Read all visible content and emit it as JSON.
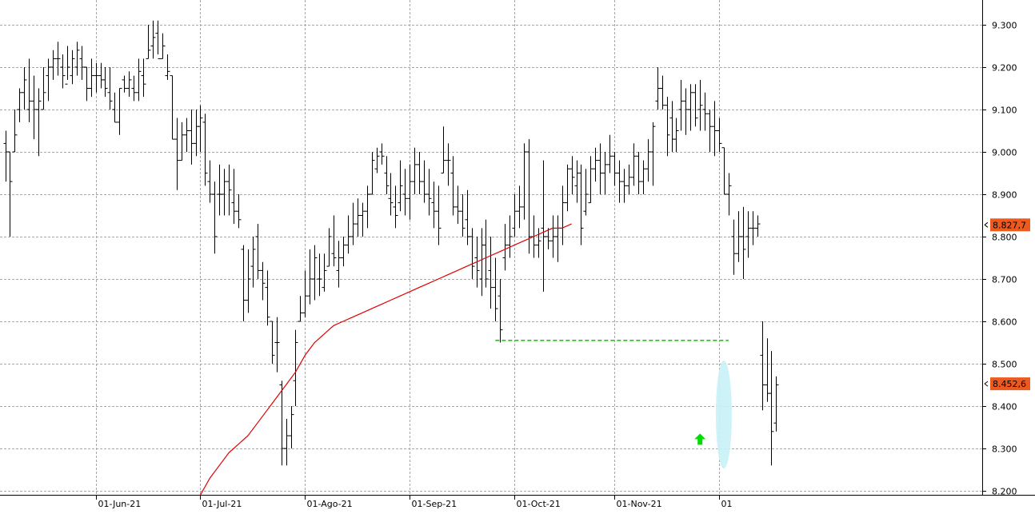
{
  "chart_data": {
    "type": "ohlc",
    "y_ticks": [
      8.2,
      8.3,
      8.4,
      8.5,
      8.6,
      8.7,
      8.8,
      8.9,
      9.0,
      9.1,
      9.2,
      9.3
    ],
    "y_tick_labels": [
      "8.200",
      "8.300",
      "8.400",
      "8.500",
      "8.600",
      "8.700",
      "8.800",
      "8.900",
      "9.000",
      "9.100",
      "9.200",
      "9.300"
    ],
    "ylim": [
      8.18,
      9.38
    ],
    "x_ticks": [
      {
        "label": "01-Jun-21",
        "index": 19
      },
      {
        "label": "01-Jul-21",
        "index": 41
      },
      {
        "label": "01-Ago-21",
        "index": 63
      },
      {
        "label": "01-Sep-21",
        "index": 85
      },
      {
        "label": "01-Oct-21",
        "index": 107
      },
      {
        "label": "01-Nov-21",
        "index": 128
      },
      {
        "label": "01",
        "index": 150
      }
    ],
    "bars": [
      {
        "o": 9.02,
        "h": 9.05,
        "l": 8.93,
        "c": 9.0
      },
      {
        "o": 9.0,
        "h": 9.0,
        "l": 8.8,
        "c": 8.93
      },
      {
        "o": 9.0,
        "h": 9.1,
        "l": 9.0,
        "c": 9.04
      },
      {
        "o": 9.1,
        "h": 9.15,
        "l": 9.07,
        "c": 9.14
      },
      {
        "o": 9.14,
        "h": 9.2,
        "l": 9.1,
        "c": 9.17
      },
      {
        "o": 9.1,
        "h": 9.22,
        "l": 9.07,
        "c": 9.12
      },
      {
        "o": 9.12,
        "h": 9.18,
        "l": 9.03,
        "c": 9.1
      },
      {
        "o": 9.1,
        "h": 9.15,
        "l": 8.99,
        "c": 9.12
      },
      {
        "o": 9.1,
        "h": 9.2,
        "l": 9.1,
        "c": 9.14
      },
      {
        "o": 9.18,
        "h": 9.22,
        "l": 9.12,
        "c": 9.2
      },
      {
        "o": 9.2,
        "h": 9.24,
        "l": 9.17,
        "c": 9.22
      },
      {
        "o": 9.22,
        "h": 9.26,
        "l": 9.18,
        "c": 9.22
      },
      {
        "o": 9.2,
        "h": 9.23,
        "l": 9.15,
        "c": 9.18
      },
      {
        "o": 9.16,
        "h": 9.25,
        "l": 9.17,
        "c": 9.2
      },
      {
        "o": 9.18,
        "h": 9.24,
        "l": 9.16,
        "c": 9.22
      },
      {
        "o": 9.2,
        "h": 9.26,
        "l": 9.18,
        "c": 9.24
      },
      {
        "o": 9.22,
        "h": 9.25,
        "l": 9.17,
        "c": 9.2
      },
      {
        "o": 9.2,
        "h": 9.2,
        "l": 9.12,
        "c": 9.15
      },
      {
        "o": 9.15,
        "h": 9.22,
        "l": 9.13,
        "c": 9.18
      },
      {
        "o": 9.18,
        "h": 9.21,
        "l": 9.14,
        "c": 9.18
      },
      {
        "o": 9.18,
        "h": 9.21,
        "l": 9.15,
        "c": 9.17
      },
      {
        "o": 9.17,
        "h": 9.2,
        "l": 9.13,
        "c": 9.15
      },
      {
        "o": 9.14,
        "h": 9.2,
        "l": 9.1,
        "c": 9.12
      },
      {
        "o": 9.1,
        "h": 9.14,
        "l": 9.07,
        "c": 9.07
      },
      {
        "o": 9.07,
        "h": 9.15,
        "l": 9.04,
        "c": 9.15
      },
      {
        "o": 9.17,
        "h": 9.18,
        "l": 9.14,
        "c": 9.15
      },
      {
        "o": 9.15,
        "h": 9.19,
        "l": 9.13,
        "c": 9.17
      },
      {
        "o": 9.15,
        "h": 9.18,
        "l": 9.12,
        "c": 9.14
      },
      {
        "o": 9.14,
        "h": 9.22,
        "l": 9.12,
        "c": 9.19
      },
      {
        "o": 9.18,
        "h": 9.22,
        "l": 9.13,
        "c": 9.16
      },
      {
        "o": 9.22,
        "h": 9.3,
        "l": 9.22,
        "c": 9.24
      },
      {
        "o": 9.25,
        "h": 9.31,
        "l": 9.22,
        "c": 9.27
      },
      {
        "o": 9.28,
        "h": 9.31,
        "l": 9.23,
        "c": 9.22
      },
      {
        "o": 9.22,
        "h": 9.28,
        "l": 9.22,
        "c": 9.25
      },
      {
        "o": 9.18,
        "h": 9.23,
        "l": 9.17,
        "c": 9.19
      },
      {
        "o": 9.18,
        "h": 9.18,
        "l": 9.03,
        "c": 9.03
      },
      {
        "o": 9.03,
        "h": 9.08,
        "l": 8.91,
        "c": 8.98
      },
      {
        "o": 8.98,
        "h": 9.07,
        "l": 8.98,
        "c": 9.04
      },
      {
        "o": 9.04,
        "h": 9.08,
        "l": 9.0,
        "c": 9.05
      },
      {
        "o": 9.05,
        "h": 9.1,
        "l": 8.97,
        "c": 9.02
      },
      {
        "o": 9.02,
        "h": 9.1,
        "l": 8.99,
        "c": 9.06
      },
      {
        "o": 9.06,
        "h": 9.11,
        "l": 9.0,
        "c": 9.08
      },
      {
        "o": 9.07,
        "h": 9.09,
        "l": 8.92,
        "c": 8.95
      },
      {
        "o": 8.93,
        "h": 8.98,
        "l": 8.88,
        "c": 8.9
      },
      {
        "o": 8.9,
        "h": 8.93,
        "l": 8.76,
        "c": 8.8
      },
      {
        "o": 8.9,
        "h": 8.97,
        "l": 8.85,
        "c": 8.9
      },
      {
        "o": 8.9,
        "h": 8.96,
        "l": 8.85,
        "c": 8.93
      },
      {
        "o": 8.93,
        "h": 8.97,
        "l": 8.85,
        "c": 8.91
      },
      {
        "o": 8.88,
        "h": 8.96,
        "l": 8.83,
        "c": 8.86
      },
      {
        "o": 8.86,
        "h": 8.9,
        "l": 8.82,
        "c": 8.84
      },
      {
        "o": 8.77,
        "h": 8.78,
        "l": 8.6,
        "c": 8.65
      },
      {
        "o": 8.65,
        "h": 8.77,
        "l": 8.62,
        "c": 8.7
      },
      {
        "o": 8.73,
        "h": 8.8,
        "l": 8.68,
        "c": 8.77
      },
      {
        "o": 8.8,
        "h": 8.83,
        "l": 8.7,
        "c": 8.72
      },
      {
        "o": 8.72,
        "h": 8.74,
        "l": 8.65,
        "c": 8.69
      },
      {
        "o": 8.68,
        "h": 8.72,
        "l": 8.59,
        "c": 8.61
      },
      {
        "o": 8.6,
        "h": 8.6,
        "l": 8.5,
        "c": 8.52
      },
      {
        "o": 8.55,
        "h": 8.61,
        "l": 8.48,
        "c": 8.55
      },
      {
        "o": 8.45,
        "h": 8.46,
        "l": 8.26,
        "c": 8.3
      },
      {
        "o": 8.3,
        "h": 8.37,
        "l": 8.26,
        "c": 8.33
      },
      {
        "o": 8.33,
        "h": 8.4,
        "l": 8.3,
        "c": 8.38
      },
      {
        "o": 8.46,
        "h": 8.58,
        "l": 8.4,
        "c": 8.55
      },
      {
        "o": 8.6,
        "h": 8.66,
        "l": 8.6,
        "c": 8.62
      },
      {
        "o": 8.62,
        "h": 8.72,
        "l": 8.61,
        "c": 8.66
      },
      {
        "o": 8.66,
        "h": 8.77,
        "l": 8.64,
        "c": 8.7
      },
      {
        "o": 8.7,
        "h": 8.78,
        "l": 8.65,
        "c": 8.75
      },
      {
        "o": 8.7,
        "h": 8.76,
        "l": 8.66,
        "c": 8.7
      },
      {
        "o": 8.68,
        "h": 8.76,
        "l": 8.67,
        "c": 8.72
      },
      {
        "o": 8.73,
        "h": 8.82,
        "l": 8.73,
        "c": 8.8
      },
      {
        "o": 8.76,
        "h": 8.85,
        "l": 8.73,
        "c": 8.75
      },
      {
        "o": 8.72,
        "h": 8.79,
        "l": 8.68,
        "c": 8.75
      },
      {
        "o": 8.75,
        "h": 8.8,
        "l": 8.73,
        "c": 8.78
      },
      {
        "o": 8.78,
        "h": 8.85,
        "l": 8.76,
        "c": 8.8
      },
      {
        "o": 8.8,
        "h": 8.88,
        "l": 8.78,
        "c": 8.83
      },
      {
        "o": 8.83,
        "h": 8.89,
        "l": 8.8,
        "c": 8.85
      },
      {
        "o": 8.85,
        "h": 8.88,
        "l": 8.8,
        "c": 8.86
      },
      {
        "o": 8.86,
        "h": 8.92,
        "l": 8.82,
        "c": 8.9
      },
      {
        "o": 8.9,
        "h": 9.0,
        "l": 8.9,
        "c": 8.98
      },
      {
        "o": 8.96,
        "h": 9.01,
        "l": 8.95,
        "c": 8.99
      },
      {
        "o": 9.0,
        "h": 9.02,
        "l": 8.97,
        "c": 8.99
      },
      {
        "o": 8.95,
        "h": 8.99,
        "l": 8.9,
        "c": 8.92
      },
      {
        "o": 8.89,
        "h": 8.95,
        "l": 8.85,
        "c": 8.88
      },
      {
        "o": 8.87,
        "h": 8.92,
        "l": 8.82,
        "c": 8.85
      },
      {
        "o": 8.88,
        "h": 8.98,
        "l": 8.86,
        "c": 8.92
      },
      {
        "o": 8.9,
        "h": 8.96,
        "l": 8.85,
        "c": 8.89
      },
      {
        "o": 8.89,
        "h": 8.97,
        "l": 8.84,
        "c": 8.93
      },
      {
        "o": 8.93,
        "h": 9.01,
        "l": 8.9,
        "c": 8.97
      },
      {
        "o": 8.97,
        "h": 9.0,
        "l": 8.9,
        "c": 8.93
      },
      {
        "o": 8.93,
        "h": 8.98,
        "l": 8.88,
        "c": 8.9
      },
      {
        "o": 8.9,
        "h": 8.96,
        "l": 8.85,
        "c": 8.89
      },
      {
        "o": 8.88,
        "h": 8.93,
        "l": 8.82,
        "c": 8.86
      },
      {
        "o": 8.86,
        "h": 8.92,
        "l": 8.78,
        "c": 8.82
      },
      {
        "o": 8.95,
        "h": 9.06,
        "l": 8.95,
        "c": 8.98
      },
      {
        "o": 8.98,
        "h": 9.02,
        "l": 8.92,
        "c": 8.98
      },
      {
        "o": 8.95,
        "h": 8.99,
        "l": 8.85,
        "c": 8.87
      },
      {
        "o": 8.87,
        "h": 8.92,
        "l": 8.83,
        "c": 8.86
      },
      {
        "o": 8.86,
        "h": 8.9,
        "l": 8.8,
        "c": 8.82
      },
      {
        "o": 8.84,
        "h": 8.91,
        "l": 8.78,
        "c": 8.8
      },
      {
        "o": 8.8,
        "h": 8.82,
        "l": 8.7,
        "c": 8.73
      },
      {
        "o": 8.75,
        "h": 8.8,
        "l": 8.68,
        "c": 8.72
      },
      {
        "o": 8.7,
        "h": 8.82,
        "l": 8.66,
        "c": 8.78
      },
      {
        "o": 8.78,
        "h": 8.84,
        "l": 8.68,
        "c": 8.7
      },
      {
        "o": 8.72,
        "h": 8.8,
        "l": 8.63,
        "c": 8.68
      },
      {
        "o": 8.68,
        "h": 8.75,
        "l": 8.6,
        "c": 8.63
      },
      {
        "o": 8.66,
        "h": 8.7,
        "l": 8.55,
        "c": 8.58
      },
      {
        "o": 8.75,
        "h": 8.83,
        "l": 8.72,
        "c": 8.78
      },
      {
        "o": 8.78,
        "h": 8.85,
        "l": 8.75,
        "c": 8.8
      },
      {
        "o": 8.82,
        "h": 8.9,
        "l": 8.8,
        "c": 8.86
      },
      {
        "o": 8.86,
        "h": 8.92,
        "l": 8.82,
        "c": 8.87
      },
      {
        "o": 8.87,
        "h": 9.02,
        "l": 8.84,
        "c": 9.0
      },
      {
        "o": 9.0,
        "h": 9.03,
        "l": 8.76,
        "c": 8.8
      },
      {
        "o": 8.8,
        "h": 8.85,
        "l": 8.75,
        "c": 8.78
      },
      {
        "o": 8.78,
        "h": 8.82,
        "l": 8.75,
        "c": 8.79
      },
      {
        "o": 8.82,
        "h": 8.98,
        "l": 8.67,
        "c": 8.8
      },
      {
        "o": 8.8,
        "h": 8.82,
        "l": 8.77,
        "c": 8.79
      },
      {
        "o": 8.79,
        "h": 8.85,
        "l": 8.75,
        "c": 8.8
      },
      {
        "o": 8.8,
        "h": 8.85,
        "l": 8.74,
        "c": 8.82
      },
      {
        "o": 8.82,
        "h": 8.92,
        "l": 8.78,
        "c": 8.88
      },
      {
        "o": 8.88,
        "h": 8.97,
        "l": 8.86,
        "c": 8.96
      },
      {
        "o": 8.96,
        "h": 8.99,
        "l": 8.9,
        "c": 8.94
      },
      {
        "o": 8.92,
        "h": 8.98,
        "l": 8.88,
        "c": 8.95
      },
      {
        "o": 8.95,
        "h": 8.97,
        "l": 8.78,
        "c": 8.82
      },
      {
        "o": 8.86,
        "h": 8.96,
        "l": 8.85,
        "c": 8.9
      },
      {
        "o": 8.88,
        "h": 8.99,
        "l": 8.88,
        "c": 8.96
      },
      {
        "o": 8.96,
        "h": 9.01,
        "l": 8.93,
        "c": 8.98
      },
      {
        "o": 8.98,
        "h": 9.02,
        "l": 8.9,
        "c": 8.95
      },
      {
        "o": 8.95,
        "h": 9.0,
        "l": 8.9,
        "c": 8.97
      },
      {
        "o": 8.97,
        "h": 9.04,
        "l": 8.95,
        "c": 8.99
      },
      {
        "o": 8.99,
        "h": 9.0,
        "l": 8.92,
        "c": 8.95
      },
      {
        "o": 8.95,
        "h": 8.98,
        "l": 8.88,
        "c": 8.93
      },
      {
        "o": 8.93,
        "h": 8.96,
        "l": 8.88,
        "c": 8.92
      },
      {
        "o": 8.92,
        "h": 8.97,
        "l": 8.9,
        "c": 8.94
      },
      {
        "o": 8.94,
        "h": 9.02,
        "l": 8.92,
        "c": 8.99
      },
      {
        "o": 8.99,
        "h": 9.0,
        "l": 8.9,
        "c": 8.93
      },
      {
        "o": 8.93,
        "h": 8.98,
        "l": 8.9,
        "c": 8.96
      },
      {
        "o": 8.96,
        "h": 9.03,
        "l": 8.93,
        "c": 9.0
      },
      {
        "o": 9.0,
        "h": 9.07,
        "l": 8.92,
        "c": 9.06
      },
      {
        "o": 9.12,
        "h": 9.2,
        "l": 9.1,
        "c": 9.15
      },
      {
        "o": 9.15,
        "h": 9.18,
        "l": 9.1,
        "c": 9.11
      },
      {
        "o": 9.11,
        "h": 9.13,
        "l": 8.99,
        "c": 9.04
      },
      {
        "o": 9.08,
        "h": 9.12,
        "l": 9.0,
        "c": 9.03
      },
      {
        "o": 9.03,
        "h": 9.08,
        "l": 9.0,
        "c": 9.05
      },
      {
        "o": 9.1,
        "h": 9.17,
        "l": 9.05,
        "c": 9.12
      },
      {
        "o": 9.12,
        "h": 9.15,
        "l": 9.04,
        "c": 9.1
      },
      {
        "o": 9.1,
        "h": 9.16,
        "l": 9.05,
        "c": 9.14
      },
      {
        "o": 9.14,
        "h": 9.16,
        "l": 9.06,
        "c": 9.08
      },
      {
        "o": 9.1,
        "h": 9.17,
        "l": 9.05,
        "c": 9.11
      },
      {
        "o": 9.1,
        "h": 9.14,
        "l": 9.05,
        "c": 9.09
      },
      {
        "o": 9.09,
        "h": 9.1,
        "l": 9.0,
        "c": 9.06
      },
      {
        "o": 9.06,
        "h": 9.12,
        "l": 8.99,
        "c": 9.05
      },
      {
        "o": 9.05,
        "h": 9.08,
        "l": 9.0,
        "c": 9.02
      },
      {
        "o": 9.01,
        "h": 9.01,
        "l": 8.9,
        "c": 8.9
      },
      {
        "o": 8.9,
        "h": 8.95,
        "l": 8.85,
        "c": 8.92
      },
      {
        "o": 8.8,
        "h": 8.84,
        "l": 8.71,
        "c": 8.76
      },
      {
        "o": 8.76,
        "h": 8.86,
        "l": 8.74,
        "c": 8.8
      },
      {
        "o": 8.8,
        "h": 8.87,
        "l": 8.7,
        "c": 8.77
      },
      {
        "o": 8.8,
        "h": 8.86,
        "l": 8.75,
        "c": 8.82
      },
      {
        "o": 8.82,
        "h": 8.86,
        "l": 8.78,
        "c": 8.82
      },
      {
        "o": 8.82,
        "h": 8.85,
        "l": 8.8,
        "c": 8.83
      },
      {
        "o": 8.52,
        "h": 8.6,
        "l": 8.39,
        "c": 8.45
      },
      {
        "o": 8.45,
        "h": 8.56,
        "l": 8.41,
        "c": 8.43
      },
      {
        "o": 8.43,
        "h": 8.53,
        "l": 8.26,
        "c": 8.34
      },
      {
        "o": 8.36,
        "h": 8.47,
        "l": 8.34,
        "c": 8.45
      }
    ],
    "ma": {
      "color": "#e00000",
      "points": [
        [
          41,
          8.19
        ],
        [
          43,
          8.23
        ],
        [
          45,
          8.26
        ],
        [
          47,
          8.29
        ],
        [
          49,
          8.31
        ],
        [
          51,
          8.33
        ],
        [
          53,
          8.36
        ],
        [
          55,
          8.39
        ],
        [
          57,
          8.42
        ],
        [
          59,
          8.45
        ],
        [
          61,
          8.48
        ],
        [
          63,
          8.52
        ],
        [
          65,
          8.55
        ],
        [
          67,
          8.57
        ],
        [
          69,
          8.59
        ],
        [
          71,
          8.6
        ],
        [
          73,
          8.61
        ],
        [
          75,
          8.62
        ],
        [
          77,
          8.63
        ],
        [
          79,
          8.64
        ],
        [
          81,
          8.65
        ],
        [
          83,
          8.66
        ],
        [
          85,
          8.67
        ],
        [
          87,
          8.68
        ],
        [
          89,
          8.69
        ],
        [
          91,
          8.7
        ],
        [
          93,
          8.71
        ],
        [
          95,
          8.72
        ],
        [
          97,
          8.73
        ],
        [
          99,
          8.74
        ],
        [
          101,
          8.75
        ],
        [
          103,
          8.76
        ],
        [
          105,
          8.77
        ],
        [
          107,
          8.78
        ],
        [
          109,
          8.79
        ],
        [
          111,
          8.8
        ],
        [
          113,
          8.81
        ],
        [
          115,
          8.82
        ],
        [
          117,
          8.82
        ],
        [
          119,
          8.83
        ]
      ]
    },
    "level_line": {
      "value": 8.555,
      "from_index": 103,
      "to_index": 152,
      "color": "#00dd00"
    },
    "price_badges": [
      {
        "label": "8.827,7",
        "value": 8.8277
      },
      {
        "label": "8.452,6",
        "value": 8.4526
      }
    ],
    "up_arrow": {
      "index": 146,
      "value": 8.32,
      "color": "#00dd00"
    },
    "highlight": {
      "index": 151,
      "center": 8.38,
      "half_height": 0.12,
      "color": "#c8f2f8"
    }
  }
}
